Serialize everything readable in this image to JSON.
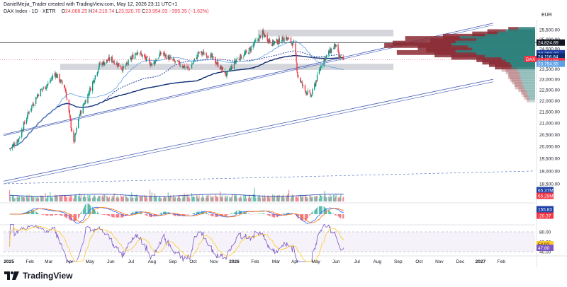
{
  "header": {
    "attribution": "DanielMejia_Trader created with TradingView.com, May 12, 2026 23:11 UTC+1",
    "symbol": "DAX Index · 1D · XETR",
    "o_label": "O",
    "o_value": "24,068.25",
    "h_label": "H",
    "h_value": "24,210.74",
    "l_label": "L",
    "l_value": "23,920.70",
    "c_label": "C",
    "c_value": "23,954.93",
    "change": "−395.35 (−1.62%)",
    "currency": "EUR"
  },
  "brand": {
    "logo_icon": "tradingview-logo",
    "name": "TradingView"
  },
  "colors": {
    "up": "#089981",
    "down": "#f23645",
    "ma_slow": "#0b2a6f",
    "ma_mid": "#1e3fa6",
    "ma_fast": "#5ea0e6",
    "vp_up": "#2a7f7a",
    "vp_down": "#8b2a34",
    "rsi": "#7e57c2"
  },
  "price_axis": {
    "ticks": [
      "25,500.00",
      "25,000.00",
      "24,500.00",
      "24,000.00",
      "23,500.00",
      "23,000.00",
      "22,500.00",
      "22,000.00",
      "21,500.00",
      "21,000.00",
      "20,500.00",
      "20,000.00",
      "19,500.00",
      "19,000.00",
      "18,500.00"
    ],
    "labels": [
      {
        "text": "24,824.69",
        "bg": "#131722",
        "fg": "#ffffff"
      },
      {
        "text": "24,280.32",
        "bg": "#1e3fa6",
        "fg": "#ffffff"
      },
      {
        "text": "24,116.84",
        "bg": "#0b2a6f",
        "fg": "#ffffff"
      },
      {
        "text": "DAX",
        "bg": "#f23645",
        "fg": "#ffffff"
      },
      {
        "text": "23,954.93",
        "bg": "#f23645",
        "fg": "#ffffff"
      },
      {
        "text": "23,754.55",
        "bg": "#5ea0e6",
        "fg": "#ffffff"
      }
    ],
    "vol_labels": [
      {
        "text": "65.37M",
        "bg": "#1e3fa6",
        "fg": "#ffffff"
      },
      {
        "text": "65.29M",
        "bg": "#f23645",
        "fg": "#ffffff"
      }
    ],
    "macd_labels": [
      {
        "text": "155.83",
        "bg": "#1e3fa6",
        "fg": "#ffffff"
      },
      {
        "text": "-20.37",
        "bg": "#f23645",
        "fg": "#ffffff"
      }
    ],
    "rsi_ticks": [
      "80.00",
      "60.00",
      "40.00"
    ],
    "rsi_labels": [
      {
        "text": "54.92",
        "bg": "#ffca28",
        "fg": "#131722"
      },
      {
        "text": "47.80",
        "bg": "#7e57c2",
        "fg": "#ffffff"
      }
    ]
  },
  "time_axis": {
    "labels": [
      "2025",
      "Feb",
      "Mar",
      "Apr",
      "May",
      "Jun",
      "Jul",
      "Aug",
      "Sep",
      "Oct",
      "Nov",
      "2026",
      "Feb",
      "Mar",
      "Apr",
      "May",
      "Jun",
      "Jul",
      "Aug",
      "Sep",
      "Oct",
      "Nov",
      "Dec",
      "2027",
      "Feb"
    ],
    "bold": [
      "2025",
      "2026",
      "2027"
    ]
  },
  "chart_data": {
    "type": "candlestick",
    "title": "DAX Index · 1D · XETR",
    "currency": "EUR",
    "ylim": [
      18400,
      25900
    ],
    "y_scale": "log",
    "grid": false,
    "close_anchors": [
      {
        "date": "2025-01-02",
        "close": 19900
      },
      {
        "date": "2025-01-15",
        "close": 20300
      },
      {
        "date": "2025-02-01",
        "close": 21600
      },
      {
        "date": "2025-02-15",
        "close": 22400
      },
      {
        "date": "2025-03-01",
        "close": 22800
      },
      {
        "date": "2025-03-10",
        "close": 23300
      },
      {
        "date": "2025-03-25",
        "close": 22600
      },
      {
        "date": "2025-04-07",
        "close": 20100
      },
      {
        "date": "2025-04-15",
        "close": 21300
      },
      {
        "date": "2025-05-01",
        "close": 22500
      },
      {
        "date": "2025-05-15",
        "close": 23700
      },
      {
        "date": "2025-06-01",
        "close": 24000
      },
      {
        "date": "2025-06-20",
        "close": 23500
      },
      {
        "date": "2025-07-10",
        "close": 24400
      },
      {
        "date": "2025-08-01",
        "close": 23700
      },
      {
        "date": "2025-08-15",
        "close": 24300
      },
      {
        "date": "2025-09-01",
        "close": 23900
      },
      {
        "date": "2025-09-25",
        "close": 23500
      },
      {
        "date": "2025-10-10",
        "close": 24300
      },
      {
        "date": "2025-10-25",
        "close": 24200
      },
      {
        "date": "2025-11-20",
        "close": 23200
      },
      {
        "date": "2025-12-05",
        "close": 24000
      },
      {
        "date": "2025-12-20",
        "close": 24300
      },
      {
        "date": "2026-01-12",
        "close": 25300
      },
      {
        "date": "2026-01-26",
        "close": 24800
      },
      {
        "date": "2026-02-05",
        "close": 24900
      },
      {
        "date": "2026-02-15",
        "close": 25100
      },
      {
        "date": "2026-02-28",
        "close": 24700
      },
      {
        "date": "2026-03-05",
        "close": 23200
      },
      {
        "date": "2026-03-15",
        "close": 22500
      },
      {
        "date": "2026-03-25",
        "close": 22200
      },
      {
        "date": "2026-04-10",
        "close": 23800
      },
      {
        "date": "2026-04-20",
        "close": 24300
      },
      {
        "date": "2026-04-30",
        "close": 24700
      },
      {
        "date": "2026-05-05",
        "close": 24100
      },
      {
        "date": "2026-05-12",
        "close": 23954.93
      }
    ],
    "support_resistance_zones": [
      {
        "from": 25150,
        "to": 25500
      },
      {
        "from": 23450,
        "to": 23750
      }
    ],
    "volume_profile": {
      "price_levels": [
        25500,
        25380,
        25260,
        25140,
        25020,
        24900,
        24780,
        24660,
        24540,
        24420,
        24300,
        24180,
        24060,
        23940,
        23820,
        23700,
        23580,
        23460,
        23340,
        23220,
        23100,
        22980,
        22860,
        22740,
        22620,
        22500,
        22380,
        22260,
        22140,
        22020
      ],
      "up_volume": [
        0.2,
        0.35,
        0.45,
        0.6,
        0.9,
        0.7,
        0.95,
        1.0,
        0.8,
        0.75,
        0.95,
        0.7,
        0.6,
        0.4,
        0.35,
        0.3,
        0.28,
        0.22,
        0.2,
        0.18,
        0.18,
        0.17,
        0.16,
        0.15,
        0.14,
        0.12,
        0.1,
        0.09,
        0.08,
        0.06
      ],
      "down_volume": [
        0.12,
        0.22,
        0.3,
        0.5,
        0.65,
        0.55,
        0.75,
        0.8,
        0.6,
        0.55,
        0.7,
        0.5,
        0.4,
        0.3,
        0.28,
        0.25,
        0.2,
        0.18,
        0.15,
        0.14,
        0.14,
        0.13,
        0.12,
        0.1,
        0.1,
        0.08,
        0.07,
        0.06,
        0.05,
        0.04
      ]
    },
    "volume": {
      "latest_ma": "65.37M",
      "latest": "65.29M"
    },
    "macd": {
      "macd": "155.83",
      "signal": "-20.37"
    },
    "rsi": {
      "rsi": "47.80",
      "rsi_ma": "54.92",
      "upper": 80,
      "lower": 40
    }
  }
}
